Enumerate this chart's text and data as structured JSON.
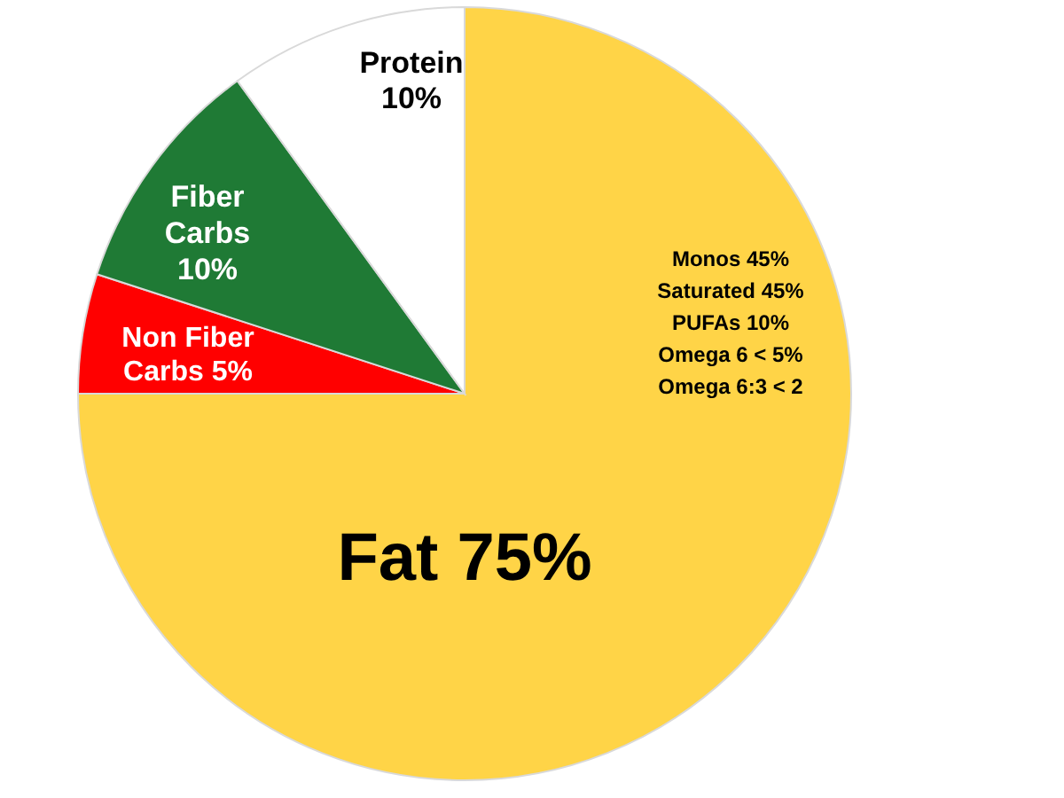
{
  "chart_data": {
    "type": "pie",
    "categories": [
      "Fat",
      "Non Fiber Carbs",
      "Fiber Carbs",
      "Protein"
    ],
    "values": [
      75,
      5,
      10,
      10
    ],
    "value_labels": [
      "75%",
      "5%",
      "10%",
      "10%"
    ],
    "colors": [
      "#ffd447",
      "#ff0000",
      "#1f7a35",
      "#ffffff"
    ],
    "annotations": [
      "Monos 45%",
      "Saturated 45%",
      "PUFAs 10%",
      "Omega 6 < 5%",
      "Omega 6:3 < 2"
    ]
  }
}
